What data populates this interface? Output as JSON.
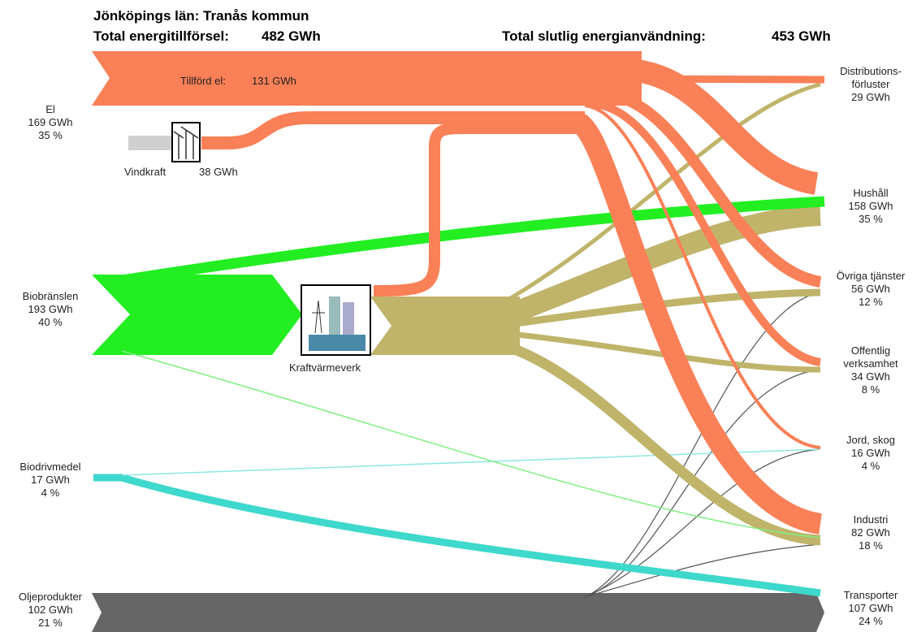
{
  "header": {
    "title": "Jönköpings län: Tranås kommun",
    "supply_label": "Total energitillförsel:",
    "supply_value": "482 GWh",
    "use_label": "Total slutlig energianvändning:",
    "use_value": "453 GWh"
  },
  "sources": [
    {
      "name": "El",
      "value": "169 GWh",
      "share": "35 %"
    },
    {
      "name": "Biobränslen",
      "value": "193 GWh",
      "share": "40 %"
    },
    {
      "name": "Biodrivmedel",
      "value": "17 GWh",
      "share": "4 %"
    },
    {
      "name": "Oljeprodukter",
      "value": "102 GWh",
      "share": "21 %"
    }
  ],
  "nodes": {
    "supplied_el_label": "Tillförd el:",
    "supplied_el_value": "131 GWh",
    "wind_label": "Vindkraft",
    "wind_value": "38 GWh",
    "chp_label": "Kraftvärmeverk"
  },
  "sinks": [
    {
      "name_lines": [
        "Distributions-",
        "förluster"
      ],
      "value": "29 GWh"
    },
    {
      "name_lines": [
        "Hushåll"
      ],
      "value": "158 GWh",
      "share": "35 %"
    },
    {
      "name_lines": [
        "Övriga tjänster"
      ],
      "value": "56 GWh",
      "share": "12 %"
    },
    {
      "name_lines": [
        "Offentlig",
        "verksamhet"
      ],
      "value": "34 GWh",
      "share": "8 %"
    },
    {
      "name_lines": [
        "Jord, skog"
      ],
      "value": "16 GWh",
      "share": "4 %"
    },
    {
      "name_lines": [
        "Industri"
      ],
      "value": "82 GWh",
      "share": "18 %"
    },
    {
      "name_lines": [
        "Transporter"
      ],
      "value": "107 GWh",
      "share": "24 %"
    }
  ]
}
